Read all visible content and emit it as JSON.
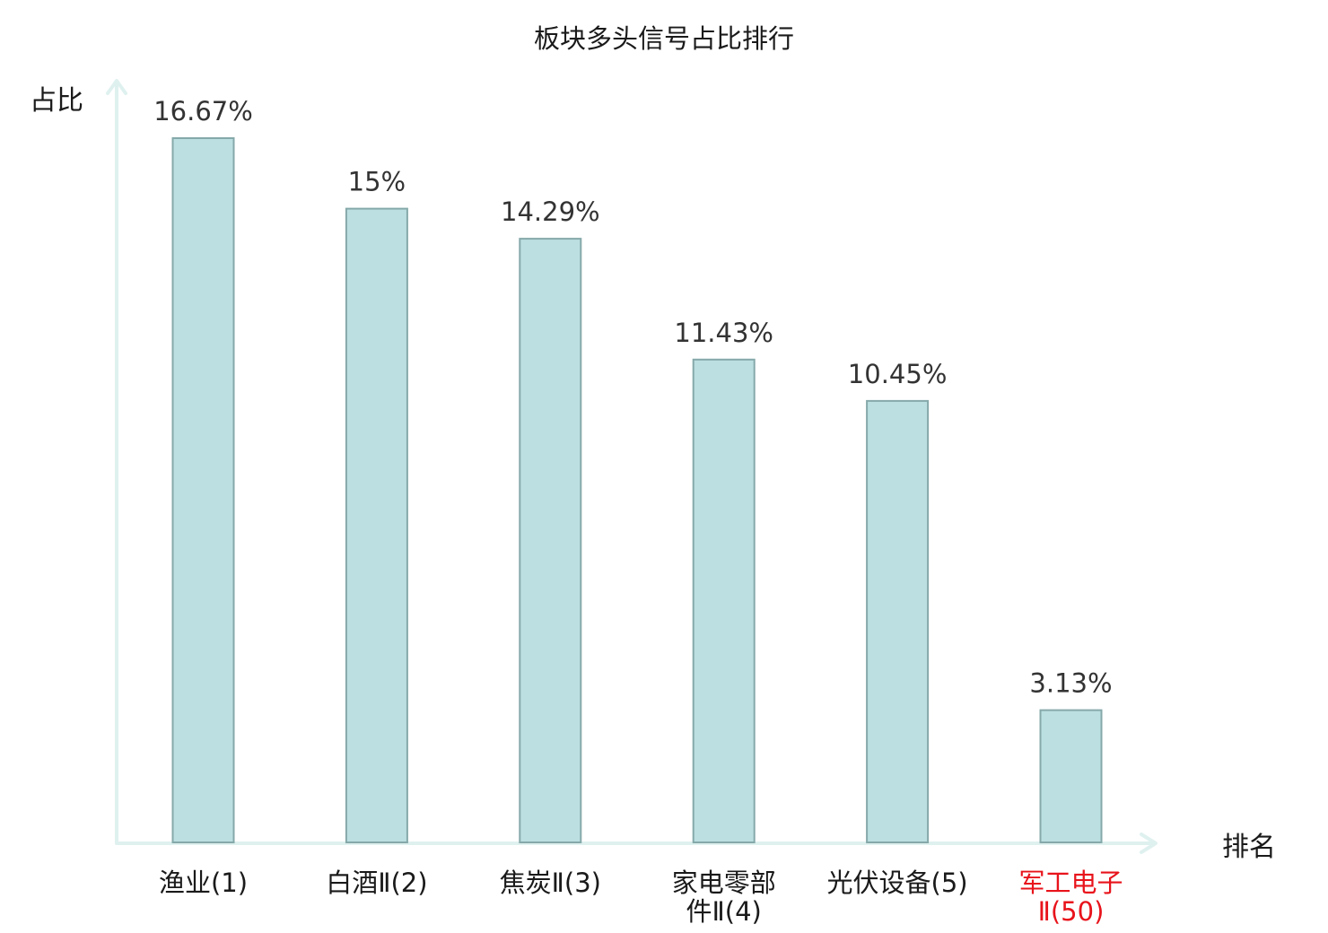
{
  "chart_data": {
    "type": "bar",
    "title": "板块多头信号占比排行",
    "ylabel": "占比",
    "xlabel": "排名",
    "categories": [
      {
        "lines": [
          "渔业(1)"
        ],
        "highlight": false
      },
      {
        "lines": [
          "白酒Ⅱ(2)"
        ],
        "highlight": false
      },
      {
        "lines": [
          "焦炭Ⅱ(3)"
        ],
        "highlight": false
      },
      {
        "lines": [
          "家电零部",
          "件Ⅱ(4)"
        ],
        "highlight": false
      },
      {
        "lines": [
          "光伏设备(5)"
        ],
        "highlight": false
      },
      {
        "lines": [
          "军工电子",
          "Ⅱ(50)"
        ],
        "highlight": true
      }
    ],
    "values": [
      16.67,
      15,
      14.29,
      11.43,
      10.45,
      3.13
    ],
    "value_labels": [
      "16.67%",
      "15%",
      "14.29%",
      "11.43%",
      "10.45%",
      "3.13%"
    ],
    "ylim": [
      0,
      16.67
    ],
    "grid": false,
    "colors": {
      "bar_fill": "#bce0e2",
      "bar_stroke": "#86a9aa",
      "axis": "#dff1ef",
      "highlight_text": "#e8131b",
      "normal_text": "#1a1a1a"
    }
  }
}
